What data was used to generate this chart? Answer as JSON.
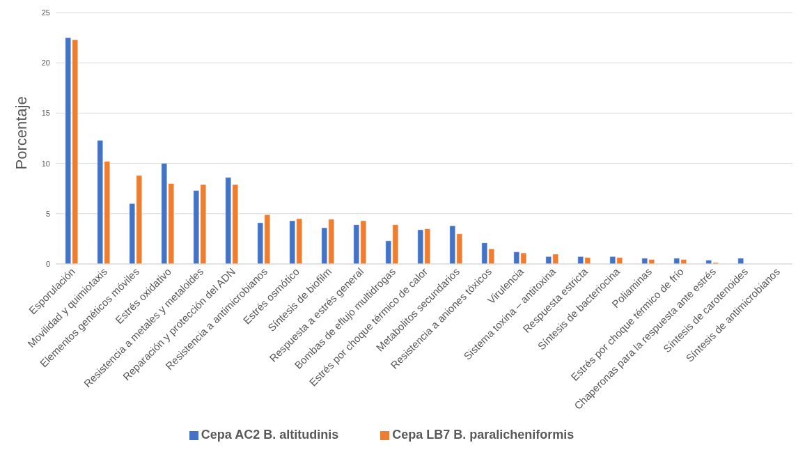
{
  "chart_data": {
    "type": "bar",
    "ylabel": "Porcentaje",
    "categories": [
      "Esporulación",
      "Movilidad y quimiotaxis",
      "Elementos genéticos móviles",
      "Estrés oxidativo",
      "Resistencia a metales y metaloides",
      "Reparación y protección del ADN",
      "Resistencia a antimicrobianos",
      "Estrés osmótico",
      "Síntesis de biofilm",
      "Respuesta a estrés general",
      "Bombas de eflujo multidrogas",
      "Estrés por choque térmico de calor",
      "Metabolitos secundarios",
      "Resistencia a aniones tóxicos",
      "Virulencia",
      "Sistema toxina – antitoxina",
      "Respuesta estricta",
      "Síntesis de bacteriocina",
      "Poliaminas",
      "Estrés por choque térmico de frío",
      "Chaperonas para la respuesta ante estrés",
      "Síntesis de carotenoides",
      "Síntesis de antimicrobianos"
    ],
    "series": [
      {
        "name": "Cepa AC2 B. altitudinis",
        "color": "#4472c4",
        "values": [
          22.5,
          12.3,
          6.0,
          10.0,
          7.3,
          8.6,
          4.1,
          4.3,
          3.6,
          3.9,
          2.3,
          3.4,
          3.8,
          2.1,
          1.2,
          0.74,
          0.74,
          0.74,
          0.57,
          0.57,
          0.38,
          0.57,
          0
        ]
      },
      {
        "name": "Cepa LB7 B. paralicheniformis",
        "color": "#ed7d31",
        "values": [
          22.3,
          10.2,
          8.8,
          8.0,
          7.9,
          7.9,
          4.9,
          4.5,
          4.45,
          4.3,
          3.9,
          3.5,
          3.0,
          1.5,
          1.1,
          0.98,
          0.64,
          0.64,
          0.45,
          0.45,
          0.14,
          0,
          0
        ]
      }
    ],
    "ylim": [
      0,
      25
    ],
    "yticks": [
      0,
      5,
      10,
      15,
      20,
      25
    ],
    "grid": "y",
    "legend": "bottom"
  }
}
